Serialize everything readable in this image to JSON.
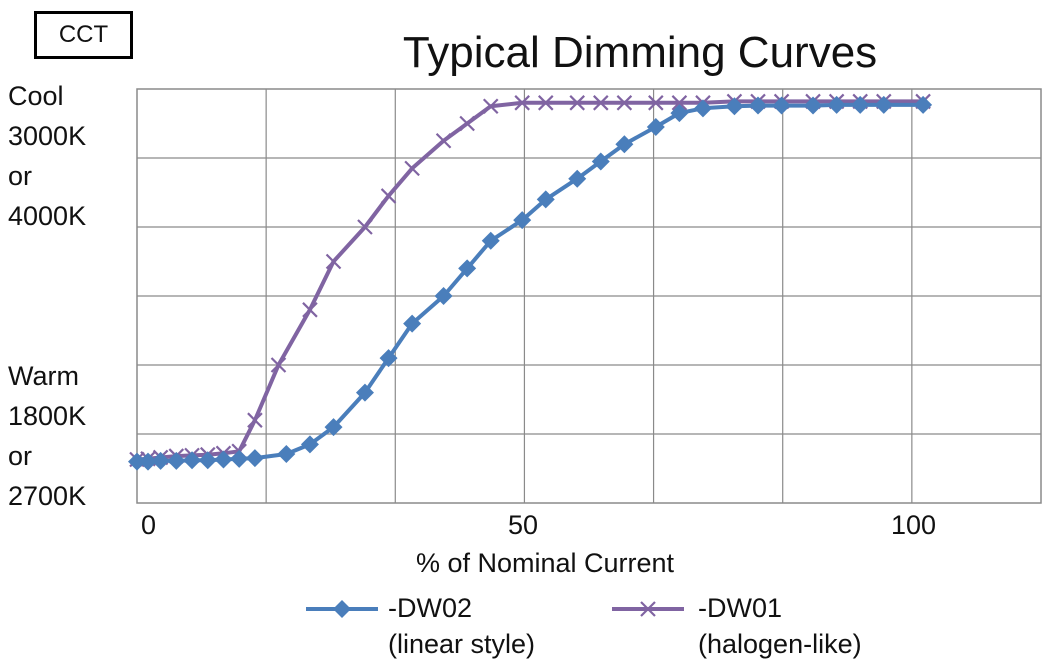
{
  "header": {
    "cct_label": "CCT"
  },
  "chart_data": {
    "type": "line",
    "title": "Typical Dimming Curves",
    "xlabel": "% of Nominal Current",
    "ylabel": "",
    "xlim": [
      0,
      115
    ],
    "ylim": [
      0,
      6
    ],
    "x_ticks": [
      "0",
      "50",
      "100"
    ],
    "y_annotations": {
      "top": [
        "Cool",
        "3000K",
        "or",
        "4000K"
      ],
      "bottom": [
        "Warm",
        "1800K",
        "or",
        "2700K"
      ]
    },
    "grid": true,
    "legend_position": "bottom",
    "series": [
      {
        "name": "-DW02",
        "subtitle": "(linear style)",
        "color": "#4a7ebb",
        "marker": "diamond",
        "x": [
          0,
          1.4,
          3,
          5,
          7,
          9,
          11,
          13,
          15,
          19,
          22,
          25,
          29,
          32,
          35,
          39,
          42,
          45,
          49,
          52,
          56,
          59,
          62,
          66,
          69,
          72,
          76,
          79,
          82,
          86,
          89,
          92,
          95,
          100
        ],
        "y": [
          0.6,
          0.6,
          0.61,
          0.61,
          0.62,
          0.62,
          0.63,
          0.64,
          0.65,
          0.71,
          0.85,
          1.1,
          1.6,
          2.1,
          2.6,
          3.0,
          3.4,
          3.8,
          4.1,
          4.4,
          4.7,
          4.95,
          5.2,
          5.45,
          5.65,
          5.72,
          5.75,
          5.76,
          5.76,
          5.76,
          5.77,
          5.77,
          5.77,
          5.77
        ]
      },
      {
        "name": "-DW01",
        "subtitle": "(halogen-like)",
        "color": "#8064a2",
        "marker": "x",
        "x": [
          0,
          1.4,
          3,
          5,
          7,
          9,
          11,
          13,
          15,
          18,
          22,
          25,
          29,
          32,
          35,
          39,
          42,
          45,
          49,
          52,
          56,
          59,
          62,
          66,
          69,
          72,
          76,
          79,
          82,
          86,
          89,
          92,
          95,
          100
        ],
        "y": [
          0.63,
          0.64,
          0.66,
          0.68,
          0.69,
          0.7,
          0.72,
          0.75,
          1.2,
          2.0,
          2.8,
          3.5,
          4.0,
          4.45,
          4.85,
          5.25,
          5.5,
          5.75,
          5.8,
          5.8,
          5.8,
          5.8,
          5.8,
          5.8,
          5.8,
          5.8,
          5.82,
          5.82,
          5.82,
          5.82,
          5.82,
          5.82,
          5.82,
          5.82
        ]
      }
    ]
  }
}
